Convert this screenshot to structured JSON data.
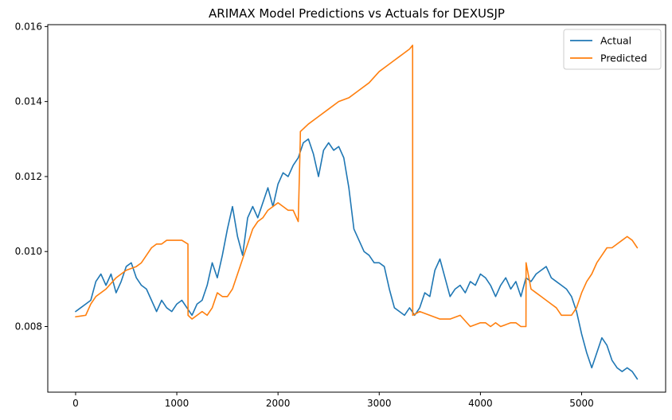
{
  "chart_data": {
    "type": "line",
    "title": "ARIMAX Model Predictions vs Actuals for DEXUSJP",
    "xlabel": "",
    "ylabel": "",
    "xlim": [
      -275,
      5830
    ],
    "ylim": [
      0.00625,
      0.01605
    ],
    "x_ticks": [
      0,
      1000,
      2000,
      3000,
      4000,
      5000
    ],
    "x_tick_labels": [
      "0",
      "1000",
      "2000",
      "3000",
      "4000",
      "5000"
    ],
    "y_ticks": [
      0.008,
      0.01,
      0.012,
      0.014,
      0.016
    ],
    "y_tick_labels": [
      "0.008",
      "0.010",
      "0.012",
      "0.014",
      "0.016"
    ],
    "grid": false,
    "legend_position": "top-right",
    "series": [
      {
        "name": "Actual",
        "color": "#1f77b4",
        "x": [
          0,
          50,
          100,
          150,
          200,
          250,
          300,
          350,
          400,
          450,
          500,
          550,
          600,
          650,
          700,
          750,
          800,
          850,
          900,
          950,
          1000,
          1050,
          1100,
          1150,
          1200,
          1250,
          1300,
          1350,
          1400,
          1450,
          1500,
          1550,
          1600,
          1650,
          1700,
          1750,
          1800,
          1850,
          1900,
          1950,
          2000,
          2050,
          2100,
          2150,
          2200,
          2250,
          2300,
          2350,
          2400,
          2450,
          2500,
          2550,
          2600,
          2650,
          2700,
          2750,
          2800,
          2850,
          2900,
          2950,
          3000,
          3050,
          3100,
          3150,
          3200,
          3250,
          3300,
          3350,
          3400,
          3450,
          3500,
          3550,
          3600,
          3650,
          3700,
          3750,
          3800,
          3850,
          3900,
          3950,
          4000,
          4050,
          4100,
          4150,
          4200,
          4250,
          4300,
          4350,
          4400,
          4450,
          4500,
          4550,
          4600,
          4650,
          4700,
          4750,
          4800,
          4850,
          4900,
          4950,
          5000,
          5050,
          5100,
          5150,
          5200,
          5250,
          5300,
          5350,
          5400,
          5450,
          5500,
          5550
        ],
        "y": [
          0.0084,
          0.0085,
          0.0086,
          0.0087,
          0.0092,
          0.0094,
          0.0091,
          0.0094,
          0.0089,
          0.0092,
          0.0096,
          0.0097,
          0.0093,
          0.0091,
          0.009,
          0.0087,
          0.0084,
          0.0087,
          0.0085,
          0.0084,
          0.0086,
          0.0087,
          0.0085,
          0.0083,
          0.0086,
          0.0087,
          0.0091,
          0.0097,
          0.0093,
          0.0099,
          0.0106,
          0.0112,
          0.0104,
          0.0099,
          0.0109,
          0.0112,
          0.0109,
          0.0113,
          0.0117,
          0.0112,
          0.0118,
          0.0121,
          0.012,
          0.0123,
          0.0125,
          0.0129,
          0.013,
          0.0126,
          0.012,
          0.0127,
          0.0129,
          0.0127,
          0.0128,
          0.0125,
          0.0117,
          0.0106,
          0.0103,
          0.01,
          0.0099,
          0.0097,
          0.0097,
          0.0096,
          0.009,
          0.0085,
          0.0084,
          0.0083,
          0.0085,
          0.0083,
          0.0085,
          0.0089,
          0.0088,
          0.0095,
          0.0098,
          0.0093,
          0.0088,
          0.009,
          0.0091,
          0.0089,
          0.0092,
          0.0091,
          0.0094,
          0.0093,
          0.0091,
          0.0088,
          0.0091,
          0.0093,
          0.009,
          0.0092,
          0.0088,
          0.0093,
          0.0092,
          0.0094,
          0.0095,
          0.0096,
          0.0093,
          0.0092,
          0.0091,
          0.009,
          0.0088,
          0.0084,
          0.0078,
          0.0073,
          0.0069,
          0.0073,
          0.0077,
          0.0075,
          0.0071,
          0.0069,
          0.0068,
          0.0069,
          0.0068,
          0.0066
        ]
      },
      {
        "name": "Predicted",
        "color": "#ff7f0e",
        "x": [
          0,
          50,
          100,
          150,
          200,
          300,
          400,
          500,
          600,
          650,
          700,
          750,
          800,
          850,
          900,
          950,
          1000,
          1050,
          1110,
          1111,
          1150,
          1200,
          1250,
          1300,
          1350,
          1400,
          1450,
          1500,
          1550,
          1600,
          1650,
          1700,
          1750,
          1800,
          1850,
          1900,
          1950,
          2000,
          2050,
          2100,
          2150,
          2200,
          2220,
          2221,
          2300,
          2400,
          2500,
          2600,
          2700,
          2800,
          2900,
          3000,
          3100,
          3150,
          3200,
          3250,
          3300,
          3330,
          3331,
          3400,
          3500,
          3600,
          3700,
          3800,
          3900,
          4000,
          4050,
          4100,
          4150,
          4200,
          4300,
          4350,
          4400,
          4450,
          4451,
          4500,
          4550,
          4600,
          4650,
          4700,
          4750,
          4800,
          4850,
          4900,
          4950,
          5000,
          5050,
          5100,
          5150,
          5200,
          5250,
          5300,
          5350,
          5400,
          5450,
          5500,
          5550
        ],
        "y": [
          0.00826,
          0.00828,
          0.0083,
          0.0086,
          0.0088,
          0.009,
          0.0093,
          0.0095,
          0.0096,
          0.0097,
          0.0099,
          0.0101,
          0.0102,
          0.0102,
          0.0103,
          0.0103,
          0.0103,
          0.0103,
          0.0102,
          0.0083,
          0.0082,
          0.0083,
          0.0084,
          0.0083,
          0.0085,
          0.0089,
          0.0088,
          0.0088,
          0.009,
          0.0094,
          0.0098,
          0.0102,
          0.0106,
          0.0108,
          0.0109,
          0.0111,
          0.0112,
          0.0113,
          0.0112,
          0.0111,
          0.0111,
          0.0108,
          0.013,
          0.0132,
          0.0134,
          0.0136,
          0.0138,
          0.014,
          0.0141,
          0.0143,
          0.0145,
          0.0148,
          0.015,
          0.0151,
          0.0152,
          0.0153,
          0.0154,
          0.0155,
          0.0083,
          0.0084,
          0.0083,
          0.0082,
          0.0082,
          0.0083,
          0.008,
          0.0081,
          0.0081,
          0.008,
          0.0081,
          0.008,
          0.0081,
          0.0081,
          0.008,
          0.008,
          0.0097,
          0.009,
          0.0089,
          0.0088,
          0.0087,
          0.0086,
          0.0085,
          0.0083,
          0.0083,
          0.0083,
          0.0085,
          0.0089,
          0.0092,
          0.0094,
          0.0097,
          0.0099,
          0.0101,
          0.0101,
          0.0102,
          0.0103,
          0.0104,
          0.0103,
          0.0101
        ]
      }
    ]
  }
}
